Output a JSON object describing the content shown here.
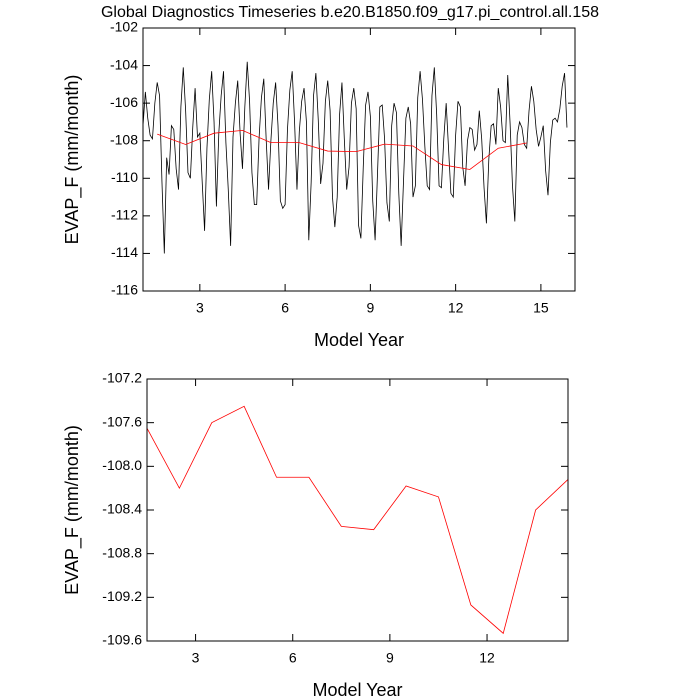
{
  "chart_data": [
    {
      "type": "line",
      "title": "Global Diagnostics Timeseries b.e20.B1850.f09_g17.pi_control.all.158",
      "xlabel": "Model Year",
      "ylabel": "EVAP_F (mm/month)",
      "xlim": [
        1,
        16.2
      ],
      "ylim": [
        -116,
        -102
      ],
      "xticks": [
        3,
        6,
        9,
        12,
        15
      ],
      "yticks": [
        -102,
        -104,
        -106,
        -108,
        -110,
        -112,
        -114,
        -116
      ],
      "series": [
        {
          "color": "#000000",
          "x": [
            1,
            1.083,
            1.167,
            1.25,
            1.333,
            1.417,
            1.5,
            1.583,
            1.667,
            1.75,
            1.833,
            1.917,
            2,
            2.083,
            2.167,
            2.25,
            2.333,
            2.417,
            2.5,
            2.583,
            2.667,
            2.75,
            2.833,
            2.917,
            3,
            3.083,
            3.167,
            3.25,
            3.333,
            3.417,
            3.5,
            3.583,
            3.667,
            3.75,
            3.833,
            3.917,
            4,
            4.083,
            4.167,
            4.25,
            4.333,
            4.417,
            4.5,
            4.583,
            4.667,
            4.75,
            4.833,
            4.917,
            5,
            5.083,
            5.167,
            5.25,
            5.333,
            5.417,
            5.5,
            5.583,
            5.667,
            5.75,
            5.833,
            5.917,
            6,
            6.083,
            6.167,
            6.25,
            6.333,
            6.417,
            6.5,
            6.583,
            6.667,
            6.75,
            6.833,
            6.917,
            7,
            7.083,
            7.167,
            7.25,
            7.333,
            7.417,
            7.5,
            7.583,
            7.667,
            7.75,
            7.833,
            7.917,
            8,
            8.083,
            8.167,
            8.25,
            8.333,
            8.417,
            8.5,
            8.583,
            8.667,
            8.75,
            8.833,
            8.917,
            9,
            9.083,
            9.167,
            9.25,
            9.333,
            9.417,
            9.5,
            9.583,
            9.667,
            9.75,
            9.833,
            9.917,
            10,
            10.083,
            10.167,
            10.25,
            10.333,
            10.417,
            10.5,
            10.583,
            10.667,
            10.75,
            10.833,
            10.917,
            11,
            11.083,
            11.167,
            11.25,
            11.333,
            11.417,
            11.5,
            11.583,
            11.667,
            11.75,
            11.833,
            11.917,
            12,
            12.083,
            12.167,
            12.25,
            12.333,
            12.417,
            12.5,
            12.583,
            12.667,
            12.75,
            12.833,
            12.917,
            13,
            13.083,
            13.167,
            13.25,
            13.333,
            13.417,
            13.5,
            13.583,
            13.667,
            13.75,
            13.833,
            13.917,
            14,
            14.083,
            14.167,
            14.25,
            14.333,
            14.417,
            14.5,
            14.583,
            14.667,
            14.75,
            14.833,
            14.917,
            15,
            15.083,
            15.167,
            15.25,
            15.333,
            15.417,
            15.5,
            15.583,
            15.667,
            15.75,
            15.833,
            15.917
          ],
          "values": [
            -107.2,
            -105.4,
            -106.8,
            -107.7,
            -107.9,
            -106.0,
            -104.9,
            -105.6,
            -110.2,
            -114.0,
            -108.9,
            -109.8,
            -107.2,
            -107.4,
            -109.5,
            -110.6,
            -106.2,
            -104.1,
            -106.4,
            -109.7,
            -110.0,
            -107.3,
            -105.2,
            -107.8,
            -107.6,
            -110.2,
            -112.8,
            -108.4,
            -105.8,
            -104.3,
            -107.0,
            -111.5,
            -107.6,
            -105.6,
            -104.3,
            -108.1,
            -110.6,
            -113.6,
            -107.8,
            -106.0,
            -104.8,
            -107.6,
            -109.5,
            -106.2,
            -103.8,
            -105.9,
            -109.7,
            -111.4,
            -111.4,
            -107.9,
            -105.7,
            -104.7,
            -107.9,
            -110.6,
            -108.0,
            -106.0,
            -104.9,
            -107.2,
            -111.2,
            -111.6,
            -111.4,
            -107.4,
            -105.3,
            -104.3,
            -107.0,
            -110.6,
            -107.5,
            -105.9,
            -105.2,
            -107.0,
            -113.3,
            -110.2,
            -105.6,
            -104.4,
            -106.9,
            -110.3,
            -109.2,
            -105.9,
            -104.8,
            -106.4,
            -111.0,
            -112.6,
            -111.0,
            -106.6,
            -104.9,
            -107.9,
            -110.6,
            -109.4,
            -106.0,
            -105.2,
            -106.3,
            -112.5,
            -113.2,
            -109.4,
            -106.1,
            -105.4,
            -106.7,
            -111.2,
            -113.3,
            -109.8,
            -106.2,
            -106.1,
            -107.9,
            -111.3,
            -112.3,
            -107.2,
            -106.0,
            -106.5,
            -110.8,
            -113.6,
            -110.1,
            -106.8,
            -106.2,
            -107.1,
            -111.0,
            -110.4,
            -105.7,
            -104.3,
            -105.8,
            -108.3,
            -110.4,
            -110.6,
            -105.6,
            -104.1,
            -106.6,
            -110.4,
            -110.5,
            -107.9,
            -106.0,
            -108.4,
            -110.8,
            -111.0,
            -107.7,
            -105.9,
            -106.2,
            -109.4,
            -110.4,
            -108.0,
            -107.3,
            -107.4,
            -108.5,
            -108.2,
            -106.4,
            -107.9,
            -110.5,
            -112.4,
            -109.0,
            -107.2,
            -107.1,
            -108.2,
            -105.2,
            -106.2,
            -108.0,
            -108.1,
            -104.5,
            -107.1,
            -110.4,
            -112.3,
            -107.7,
            -107.0,
            -107.3,
            -108.2,
            -108.4,
            -106.4,
            -105.1,
            -105.9,
            -107.4,
            -108.3,
            -107.8,
            -107.2,
            -109.6,
            -110.9,
            -108.1,
            -106.9,
            -106.8,
            -107.0,
            -106.3,
            -105.1,
            -104.4,
            -107.3
          ]
        },
        {
          "color": "#ff0000",
          "x": [
            1.5,
            2.5,
            3.5,
            4.5,
            5.5,
            6.5,
            7.5,
            8.5,
            9.5,
            10.5,
            11.5,
            12.5,
            13.5,
            14.5
          ],
          "values": [
            -107.65,
            -108.2,
            -107.6,
            -107.45,
            -108.1,
            -108.1,
            -108.55,
            -108.58,
            -108.18,
            -108.28,
            -109.27,
            -109.53,
            -108.4,
            -108.12
          ]
        }
      ]
    },
    {
      "type": "line",
      "xlabel": "Model Year",
      "ylabel": "EVAP_F (mm/month)",
      "xlim": [
        1.5,
        14.5
      ],
      "ylim": [
        -109.6,
        -107.2
      ],
      "xticks": [
        3,
        6,
        9,
        12
      ],
      "yticks": [
        -107.2,
        -107.6,
        {
          "value": -108,
          "label": "-108.0"
        },
        -108.4,
        -108.8,
        -109.2,
        -109.6
      ],
      "series": [
        {
          "color": "#ff0000",
          "x": [
            1.5,
            2.5,
            3.5,
            4.5,
            5.5,
            6.5,
            7.5,
            8.5,
            9.5,
            10.5,
            11.5,
            12.5,
            13.5,
            14.5
          ],
          "values": [
            -107.65,
            -108.2,
            -107.6,
            -107.45,
            -108.1,
            -108.1,
            -108.55,
            -108.58,
            -108.18,
            -108.28,
            -109.27,
            -109.53,
            -108.4,
            -108.12
          ]
        }
      ]
    }
  ]
}
